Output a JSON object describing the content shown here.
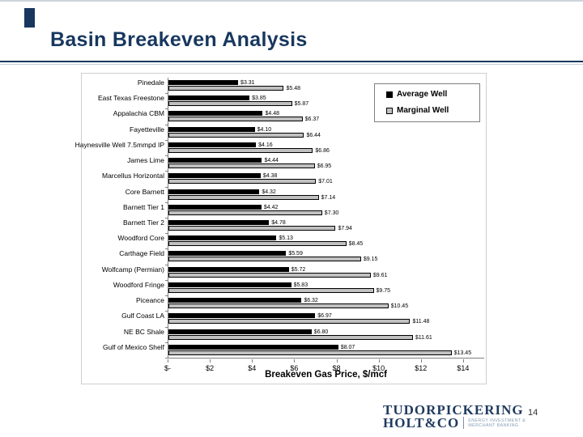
{
  "slide": {
    "title": "Basin Breakeven Analysis",
    "page_number": "14"
  },
  "logo": {
    "line1": "TUDORPICKERING",
    "line2": "HOLT&CO",
    "tagline1": "ENERGY INVESTMENT &",
    "tagline2": "MERCHANT BANKING"
  },
  "chart_data": {
    "type": "bar",
    "orientation": "horizontal",
    "title": "",
    "xlabel": "Breakeven Gas Price, $/mcf",
    "ylabel": "",
    "xlim": [
      0,
      15
    ],
    "x_tick_values": [
      0,
      2,
      4,
      6,
      8,
      10,
      12,
      14
    ],
    "x_ticks": [
      "$-",
      "$2",
      "$4",
      "$6",
      "$8",
      "$10",
      "$12",
      "$14"
    ],
    "grid": false,
    "legend_position": "top-right",
    "value_label_format": "$0.00",
    "categories": [
      "Pinedale",
      "East Texas Freestone",
      "Appalachia CBM",
      "Fayetteville",
      "Haynesville Well 7.5mmpd IP",
      "James Lime",
      "Marcellus Horizontal",
      "Core Barnett",
      "Barnett Tier 1",
      "Barnett Tier 2",
      "Woodford Core",
      "Carthage Field",
      "Wolfcamp (Permian)",
      "Woodford Fringe",
      "Piceance",
      "Gulf Coast LA",
      "NE BC Shale",
      "Gulf of Mexico Shelf"
    ],
    "series": [
      {
        "name": "Average Well",
        "color": "#000000",
        "values": [
          3.31,
          3.85,
          4.48,
          4.1,
          4.16,
          4.44,
          4.38,
          4.32,
          4.42,
          4.78,
          5.13,
          5.59,
          5.72,
          5.83,
          6.32,
          6.97,
          6.8,
          8.07
        ]
      },
      {
        "name": "Marginal Well",
        "color": "#c0c0c0",
        "values": [
          5.48,
          5.87,
          6.37,
          6.44,
          6.86,
          6.95,
          7.01,
          7.14,
          7.3,
          7.94,
          8.45,
          9.15,
          9.61,
          9.75,
          10.45,
          11.48,
          11.61,
          13.45
        ]
      }
    ]
  }
}
